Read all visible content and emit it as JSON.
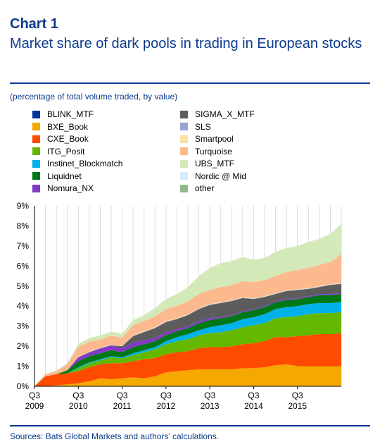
{
  "header": {
    "chart_number": "Chart 1",
    "title": "Market share of dark pools in trading in European stocks",
    "subtitle": "(percentage of total volume traded, by value)"
  },
  "footer": {
    "source": "Sources: Bats Global Markets and authors’ calculations."
  },
  "chart_data": {
    "type": "area",
    "stacked": true,
    "title": "Market share of dark pools in trading in European stocks",
    "subtitle": "(percentage of total volume traded, by value)",
    "xlabel": "",
    "ylabel": "",
    "ylim": [
      0,
      9
    ],
    "y_ticks": [
      "0%",
      "1%",
      "2%",
      "3%",
      "4%",
      "5%",
      "6%",
      "7%",
      "8%",
      "9%"
    ],
    "x_ticks": [
      {
        "top": "Q3",
        "bottom": "2009",
        "index": 0
      },
      {
        "top": "Q3",
        "bottom": "2010",
        "index": 4
      },
      {
        "top": "Q3",
        "bottom": "2011",
        "index": 8
      },
      {
        "top": "Q3",
        "bottom": "2012",
        "index": 12
      },
      {
        "top": "Q3",
        "bottom": "2013",
        "index": 16
      },
      {
        "top": "Q3",
        "bottom": "2014",
        "index": 20
      },
      {
        "top": "Q3",
        "bottom": "2015",
        "index": 24
      }
    ],
    "grid": "vertical",
    "legend_position": "top",
    "x": [
      "2009 Q3",
      "2009 Q4",
      "2010 Q1",
      "2010 Q2",
      "2010 Q3",
      "2010 Q4",
      "2011 Q1",
      "2011 Q2",
      "2011 Q3",
      "2011 Q4",
      "2012 Q1",
      "2012 Q2",
      "2012 Q3",
      "2012 Q4",
      "2013 Q1",
      "2013 Q2",
      "2013 Q3",
      "2013 Q4",
      "2014 Q1",
      "2014 Q2",
      "2014 Q3",
      "2014 Q4",
      "2015 Q1",
      "2015 Q2",
      "2015 Q3",
      "2015 Q4",
      "2016 Q1",
      "2016 Q2",
      "2016 Q3"
    ],
    "series": [
      {
        "name": "BXE_Book",
        "color": "#f5a800",
        "values": [
          0,
          0,
          0.05,
          0.1,
          0.15,
          0.25,
          0.4,
          0.35,
          0.4,
          0.45,
          0.4,
          0.5,
          0.7,
          0.75,
          0.8,
          0.85,
          0.85,
          0.85,
          0.85,
          0.9,
          0.9,
          0.95,
          1.05,
          1.1,
          1.0,
          1.0,
          1.0,
          1.0,
          1.0
        ]
      },
      {
        "name": "CXE_Book",
        "color": "#ff4b00",
        "values": [
          0,
          0.5,
          0.55,
          0.55,
          0.6,
          0.7,
          0.7,
          0.8,
          0.75,
          0.8,
          0.95,
          0.9,
          0.9,
          0.95,
          0.95,
          1.05,
          1.1,
          1.1,
          1.15,
          1.2,
          1.25,
          1.3,
          1.4,
          1.35,
          1.5,
          1.55,
          1.6,
          1.6,
          1.65
        ]
      },
      {
        "name": "ITG_Posit",
        "color": "#65b800",
        "values": [
          0,
          0,
          0,
          0,
          0.15,
          0.2,
          0.2,
          0.3,
          0.25,
          0.3,
          0.35,
          0.45,
          0.5,
          0.55,
          0.6,
          0.65,
          0.7,
          0.75,
          0.8,
          0.85,
          0.9,
          0.9,
          0.95,
          1.0,
          1.0,
          1.05,
          1.05,
          1.05,
          1.05
        ]
      },
      {
        "name": "Instinet_Blockmatch",
        "color": "#00b1ea",
        "values": [
          0,
          0,
          0,
          0,
          0.05,
          0.05,
          0.05,
          0.05,
          0.05,
          0.1,
          0.1,
          0.1,
          0.15,
          0.2,
          0.25,
          0.25,
          0.3,
          0.35,
          0.35,
          0.4,
          0.4,
          0.45,
          0.45,
          0.5,
          0.5,
          0.5,
          0.5,
          0.5,
          0.5
        ]
      },
      {
        "name": "Liquidnet",
        "color": "#007816",
        "values": [
          0,
          0,
          0,
          0.15,
          0.3,
          0.3,
          0.3,
          0.3,
          0.25,
          0.3,
          0.3,
          0.3,
          0.3,
          0.3,
          0.3,
          0.35,
          0.35,
          0.35,
          0.35,
          0.35,
          0.35,
          0.35,
          0.35,
          0.35,
          0.35,
          0.35,
          0.4,
          0.4,
          0.4
        ]
      },
      {
        "name": "Nomura_NX",
        "color": "#8139c6",
        "values": [
          0,
          0,
          0,
          0,
          0.2,
          0.2,
          0.25,
          0.25,
          0.2,
          0.25,
          0.2,
          0.15,
          0.15,
          0.1,
          0.1,
          0.1,
          0.1,
          0.05,
          0.05,
          0.05,
          0.05,
          0.05,
          0.05,
          0.05,
          0.05,
          0.05,
          0.05,
          0.05,
          0.05
        ]
      },
      {
        "name": "SIGMA_X_MTF",
        "color": "#5c5c5c",
        "values": [
          0,
          0,
          0,
          0,
          0,
          0,
          0,
          0,
          0.1,
          0.3,
          0.4,
          0.5,
          0.5,
          0.5,
          0.55,
          0.6,
          0.65,
          0.7,
          0.7,
          0.65,
          0.5,
          0.45,
          0.35,
          0.4,
          0.4,
          0.35,
          0.35,
          0.45,
          0.45
        ]
      },
      {
        "name": "SLS",
        "color": "#98a1d0",
        "values": [
          0,
          0,
          0,
          0,
          0,
          0,
          0,
          0,
          0,
          0.02,
          0.02,
          0.02,
          0.02,
          0.02,
          0.02,
          0.02,
          0.02,
          0.02,
          0.02,
          0.02,
          0.02,
          0.02,
          0.02,
          0.02,
          0.02,
          0.02,
          0.02,
          0.02,
          0.02
        ]
      },
      {
        "name": "Smartpool",
        "color": "#fde0a7",
        "values": [
          0,
          0,
          0,
          0,
          0.02,
          0.03,
          0.03,
          0.03,
          0.03,
          0.03,
          0.03,
          0.03,
          0.03,
          0.03,
          0.03,
          0.03,
          0.03,
          0.03,
          0.03,
          0.03,
          0.03,
          0.03,
          0.03,
          0.03,
          0.03,
          0.03,
          0.03,
          0.03,
          0.03
        ]
      },
      {
        "name": "Turquoise",
        "color": "#fdb98e",
        "values": [
          0,
          0.1,
          0.15,
          0.3,
          0.5,
          0.5,
          0.4,
          0.45,
          0.4,
          0.5,
          0.5,
          0.55,
          0.6,
          0.6,
          0.65,
          0.7,
          0.7,
          0.75,
          0.75,
          0.8,
          0.8,
          0.8,
          0.85,
          0.9,
          0.95,
          1.0,
          1.05,
          1.1,
          1.45
        ]
      },
      {
        "name": "UBS_MTF",
        "color": "#d4e9b8",
        "values": [
          0,
          0.02,
          0.05,
          0.05,
          0.15,
          0.18,
          0.2,
          0.2,
          0.2,
          0.25,
          0.3,
          0.4,
          0.5,
          0.6,
          0.7,
          0.9,
          1.1,
          1.2,
          1.2,
          1.2,
          1.1,
          1.1,
          1.2,
          1.2,
          1.2,
          1.3,
          1.3,
          1.4,
          1.5
        ]
      },
      {
        "name": "Nordic @ Mid",
        "color": "#d9ecf9",
        "values": [
          0,
          0,
          0,
          0,
          0,
          0,
          0,
          0,
          0,
          0,
          0,
          0,
          0,
          0,
          0,
          0,
          0,
          0,
          0,
          0,
          0,
          0,
          0,
          0,
          0,
          0,
          0,
          0,
          0
        ]
      },
      {
        "name": "other",
        "color": "#8fb98b",
        "values": [
          0,
          0,
          0,
          0,
          0,
          0,
          0,
          0,
          0,
          0,
          0,
          0,
          0,
          0,
          0,
          0,
          0,
          0,
          0,
          0,
          0,
          0,
          0,
          0,
          0,
          0,
          0,
          0,
          0
        ]
      }
    ],
    "legend": [
      {
        "label": "BLINK_MTF",
        "color": "#0033a0"
      },
      {
        "label": "BXE_Book",
        "color": "#f5a800"
      },
      {
        "label": "CXE_Book",
        "color": "#ff4b00"
      },
      {
        "label": "ITG_Posit",
        "color": "#65b800"
      },
      {
        "label": "Instinet_Blockmatch",
        "color": "#00b1ea"
      },
      {
        "label": "Liquidnet",
        "color": "#007816"
      },
      {
        "label": "Nomura_NX",
        "color": "#8139c6"
      },
      {
        "label": "SIGMA_X_MTF",
        "color": "#5c5c5c"
      },
      {
        "label": "SLS",
        "color": "#98a1d0"
      },
      {
        "label": "Smartpool",
        "color": "#fde0a7"
      },
      {
        "label": "Turquoise",
        "color": "#fdb98e"
      },
      {
        "label": "UBS_MTF",
        "color": "#d4e9b8"
      },
      {
        "label": "Nordic @ Mid",
        "color": "#d9ecf9"
      },
      {
        "label": "other",
        "color": "#8fb98b"
      }
    ]
  }
}
